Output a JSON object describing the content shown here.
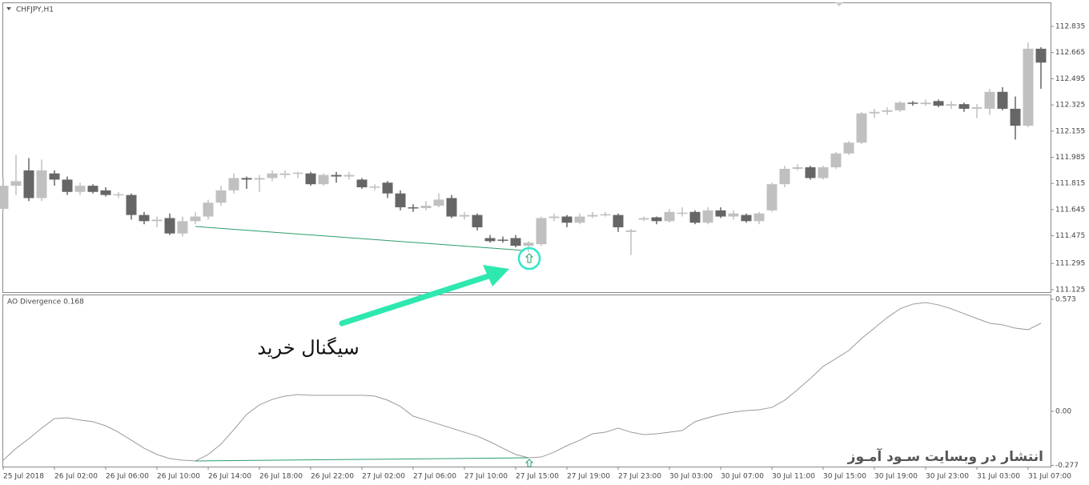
{
  "chart_data": [
    {
      "type": "candlestick",
      "title": "CHFJPY,H1",
      "annotation": "سیگنال خرید",
      "watermark": "انتشار در وبسایت سـود آمـوز",
      "categories": [
        "25 Jul 2018",
        null,
        null,
        null,
        "26 Jul 02:00",
        null,
        null,
        null,
        "26 Jul 06:00",
        null,
        null,
        null,
        "26 Jul 10:00",
        null,
        null,
        null,
        "26 Jul 14:00",
        null,
        null,
        null,
        "26 Jul 18:00",
        null,
        null,
        null,
        "26 Jul 22:00",
        null,
        null,
        null,
        "27 Jul 02:00",
        null,
        null,
        null,
        "27 Jul 06:00",
        null,
        null,
        null,
        "27 Jul 10:00",
        null,
        null,
        null,
        "27 Jul 15:00",
        null,
        null,
        null,
        "27 Jul 19:00",
        null,
        null,
        null,
        "27 Jul 23:00",
        null,
        null,
        null,
        "30 Jul 03:00",
        null,
        null,
        null,
        "30 Jul 07:00",
        null,
        null,
        null,
        "30 Jul 11:00",
        null,
        null,
        null,
        "30 Jul 15:00",
        null,
        null,
        null,
        "30 Jul 19:00",
        null,
        null,
        null,
        "30 Jul 23:00",
        null,
        null,
        null,
        "31 Jul 03:00",
        null,
        null,
        null,
        "31 Jul 07:00",
        null
      ],
      "open": [
        111.65,
        111.8,
        111.9,
        111.72,
        111.88,
        111.84,
        111.76,
        111.8,
        111.77,
        111.74,
        111.74,
        111.61,
        111.57,
        111.59,
        111.49,
        111.57,
        111.6,
        111.69,
        111.77,
        111.85,
        111.84,
        111.85,
        111.87,
        111.88,
        111.88,
        111.81,
        111.87,
        111.86,
        111.84,
        111.79,
        111.82,
        111.75,
        111.66,
        111.655,
        111.67,
        111.72,
        111.6,
        111.61,
        111.46,
        111.45,
        111.46,
        111.41,
        111.42,
        111.59,
        111.6,
        111.56,
        111.6,
        111.61,
        111.61,
        111.5,
        111.58,
        111.595,
        111.57,
        111.62,
        111.63,
        111.56,
        111.64,
        111.6,
        111.61,
        111.57,
        111.64,
        111.81,
        111.91,
        111.92,
        111.85,
        111.92,
        112.01,
        112.08,
        112.27,
        112.28,
        112.29,
        112.34,
        112.33,
        112.35,
        112.32,
        112.33,
        112.3,
        112.3,
        112.41,
        112.3,
        112.19,
        112.69
      ],
      "high": [
        111.85,
        112.0,
        111.98,
        111.97,
        111.9,
        111.86,
        111.82,
        111.81,
        111.79,
        111.76,
        111.75,
        111.63,
        111.6,
        111.62,
        111.6,
        111.63,
        111.71,
        111.8,
        111.88,
        111.86,
        111.87,
        111.9,
        111.9,
        111.89,
        111.89,
        111.88,
        111.89,
        111.89,
        111.85,
        111.81,
        111.83,
        111.77,
        111.68,
        111.7,
        111.75,
        111.74,
        111.63,
        111.62,
        111.48,
        111.47,
        111.48,
        111.44,
        111.6,
        111.62,
        111.61,
        111.62,
        111.63,
        111.63,
        111.62,
        111.52,
        111.6,
        111.6,
        111.65,
        111.66,
        111.64,
        111.66,
        111.66,
        111.64,
        111.62,
        111.63,
        111.82,
        111.93,
        111.94,
        111.93,
        111.93,
        112.02,
        112.09,
        112.28,
        112.3,
        112.31,
        112.35,
        112.35,
        112.36,
        112.36,
        112.35,
        112.34,
        112.33,
        112.43,
        112.44,
        112.38,
        112.73,
        112.7
      ],
      "low": [
        111.64,
        111.74,
        111.7,
        111.7,
        111.8,
        111.74,
        111.74,
        111.75,
        111.73,
        111.72,
        111.58,
        111.55,
        111.53,
        111.48,
        111.47,
        111.55,
        111.58,
        111.67,
        111.75,
        111.78,
        111.76,
        111.83,
        111.85,
        111.85,
        111.8,
        111.8,
        111.82,
        111.84,
        111.78,
        111.77,
        111.72,
        111.64,
        111.63,
        111.64,
        111.66,
        111.59,
        111.58,
        111.51,
        111.43,
        111.43,
        111.4,
        111.37,
        111.41,
        111.57,
        111.53,
        111.55,
        111.59,
        111.6,
        111.5,
        111.35,
        111.57,
        111.55,
        111.56,
        111.6,
        111.55,
        111.55,
        111.59,
        111.58,
        111.56,
        111.55,
        111.63,
        111.79,
        111.9,
        111.84,
        111.84,
        111.91,
        112.0,
        112.07,
        112.24,
        112.26,
        112.28,
        112.32,
        112.32,
        112.31,
        112.3,
        112.28,
        112.24,
        112.26,
        112.29,
        112.1,
        112.18,
        112.43
      ],
      "close": [
        111.8,
        111.83,
        111.72,
        111.9,
        111.84,
        111.76,
        111.8,
        111.76,
        111.74,
        111.745,
        111.61,
        111.57,
        111.58,
        111.49,
        111.57,
        111.6,
        111.69,
        111.77,
        111.85,
        111.84,
        111.85,
        111.88,
        111.88,
        111.885,
        111.81,
        111.87,
        111.86,
        111.87,
        111.79,
        111.795,
        111.75,
        111.66,
        111.655,
        111.67,
        111.71,
        111.6,
        111.61,
        111.53,
        111.44,
        111.445,
        111.41,
        111.43,
        111.59,
        111.6,
        111.56,
        111.6,
        111.61,
        111.615,
        111.53,
        111.51,
        111.59,
        111.57,
        111.63,
        111.625,
        111.56,
        111.64,
        111.6,
        111.62,
        111.57,
        111.62,
        111.81,
        111.91,
        111.92,
        111.85,
        111.92,
        112.01,
        112.08,
        112.27,
        112.28,
        112.29,
        112.34,
        112.335,
        112.34,
        112.32,
        112.33,
        112.3,
        112.31,
        112.41,
        112.3,
        112.19,
        112.69,
        112.6
      ],
      "up_color": "#c0c0c0",
      "down_color": "#666666",
      "ylim": [
        111.109,
        112.991
      ],
      "yticks": [
        112.835,
        112.665,
        112.495,
        112.325,
        112.155,
        111.985,
        111.815,
        111.645,
        111.475,
        111.295,
        111.125
      ]
    },
    {
      "type": "line",
      "title": "AO Divergence 0.168",
      "color": "#9a9a9a",
      "values": [
        -0.25,
        -0.19,
        -0.14,
        -0.086,
        -0.037,
        -0.033,
        -0.045,
        -0.053,
        -0.074,
        -0.107,
        -0.148,
        -0.189,
        -0.221,
        -0.242,
        -0.25,
        -0.254,
        -0.221,
        -0.168,
        -0.094,
        -0.016,
        0.033,
        0.061,
        0.078,
        0.086,
        0.082,
        0.082,
        0.082,
        0.082,
        0.082,
        0.078,
        0.057,
        0.025,
        -0.025,
        -0.045,
        -0.066,
        -0.086,
        -0.107,
        -0.127,
        -0.156,
        -0.189,
        -0.221,
        -0.238,
        -0.234,
        -0.209,
        -0.176,
        -0.148,
        -0.115,
        -0.107,
        -0.086,
        -0.107,
        -0.119,
        -0.115,
        -0.107,
        -0.098,
        -0.053,
        -0.033,
        -0.016,
        -0.004,
        0.004,
        0.008,
        0.02,
        0.057,
        0.111,
        0.168,
        0.23,
        0.27,
        0.311,
        0.373,
        0.426,
        0.48,
        0.525,
        0.549,
        0.557,
        0.545,
        0.525,
        0.5,
        0.475,
        0.451,
        0.443,
        0.426,
        0.418,
        0.451
      ],
      "ylim": [
        -0.283,
        0.598
      ],
      "yticks": [
        0.573,
        {
          "value": 0,
          "label": "0.00"
        },
        -0.277
      ]
    }
  ]
}
